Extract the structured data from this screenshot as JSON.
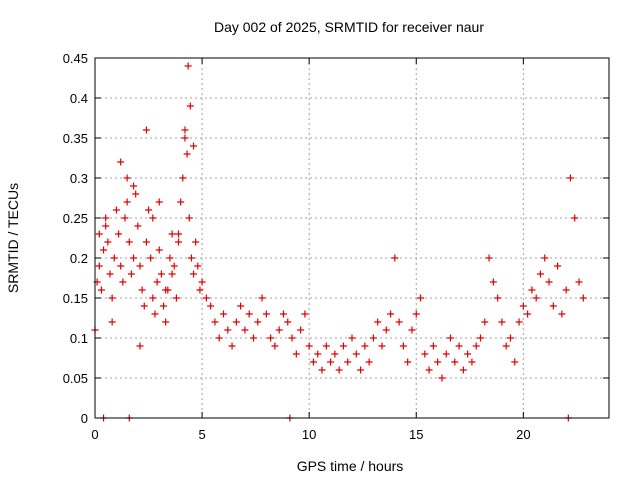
{
  "chart_data": {
    "type": "scatter",
    "title": "Day 002 of 2025, SRMTID for receiver naur",
    "xlabel": "GPS time / hours",
    "ylabel": "SRMTID / TECUs",
    "xlim": [
      0,
      24
    ],
    "ylim": [
      0,
      0.45
    ],
    "xticks": [
      0,
      5,
      10,
      15,
      20
    ],
    "yticks": [
      0,
      0.05,
      0.1,
      0.15,
      0.2,
      0.25,
      0.3,
      0.35,
      0.4,
      0.45
    ],
    "xtick_labels": [
      "0",
      "5",
      "10",
      "15",
      "20"
    ],
    "ytick_labels": [
      "0",
      "0.05",
      "0.1",
      "0.15",
      "0.2",
      "0.25",
      "0.3",
      "0.35",
      "0.4",
      "0.45"
    ],
    "grid": true,
    "marker": "+",
    "color": "#e00000",
    "series": [
      {
        "name": "SRMTID",
        "x": [
          0.0,
          0.1,
          0.2,
          0.3,
          0.4,
          0.5,
          0.6,
          0.7,
          0.8,
          0.9,
          1.0,
          1.1,
          1.2,
          1.3,
          1.4,
          1.5,
          1.6,
          1.7,
          1.8,
          1.9,
          2.0,
          2.1,
          2.2,
          2.3,
          2.4,
          2.5,
          2.6,
          2.7,
          2.8,
          2.9,
          3.0,
          3.1,
          3.2,
          3.3,
          3.4,
          3.5,
          3.6,
          3.7,
          3.8,
          3.9,
          4.0,
          4.1,
          4.2,
          4.3,
          4.4,
          4.5,
          4.6,
          4.7,
          4.8,
          4.9,
          5.0,
          5.2,
          5.4,
          5.6,
          5.8,
          6.0,
          6.2,
          6.4,
          6.6,
          6.8,
          7.0,
          7.2,
          7.4,
          7.6,
          7.8,
          8.0,
          8.2,
          8.4,
          8.6,
          8.8,
          9.0,
          9.2,
          9.4,
          9.6,
          9.8,
          10.0,
          10.2,
          10.4,
          10.6,
          10.8,
          11.0,
          11.2,
          11.4,
          11.6,
          11.8,
          12.0,
          12.2,
          12.4,
          12.6,
          12.8,
          13.0,
          13.2,
          13.4,
          13.6,
          13.8,
          14.0,
          14.2,
          14.4,
          14.6,
          14.8,
          15.0,
          15.2,
          15.4,
          15.6,
          15.8,
          16.0,
          16.2,
          16.4,
          16.6,
          16.8,
          17.0,
          17.2,
          17.4,
          17.6,
          17.8,
          18.0,
          18.2,
          18.4,
          18.6,
          18.8,
          19.0,
          19.2,
          19.4,
          19.6,
          19.8,
          20.0,
          20.2,
          20.4,
          20.6,
          20.8,
          21.0,
          21.2,
          21.4,
          21.6,
          21.8,
          22.0,
          22.2,
          22.4,
          22.6,
          22.8,
          0.2,
          0.5,
          0.8,
          1.2,
          1.5,
          1.8,
          2.1,
          2.4,
          2.7,
          3.0,
          3.3,
          3.6,
          3.9,
          4.2,
          4.35,
          4.45,
          4.6,
          0.4,
          1.6,
          9.1,
          22.1
        ],
        "y": [
          0.11,
          0.17,
          0.19,
          0.16,
          0.21,
          0.24,
          0.22,
          0.18,
          0.15,
          0.2,
          0.26,
          0.23,
          0.19,
          0.17,
          0.25,
          0.3,
          0.22,
          0.18,
          0.2,
          0.28,
          0.24,
          0.19,
          0.16,
          0.14,
          0.22,
          0.26,
          0.2,
          0.15,
          0.13,
          0.17,
          0.21,
          0.18,
          0.14,
          0.12,
          0.16,
          0.2,
          0.23,
          0.19,
          0.15,
          0.22,
          0.27,
          0.3,
          0.36,
          0.33,
          0.25,
          0.2,
          0.18,
          0.22,
          0.19,
          0.16,
          0.17,
          0.15,
          0.14,
          0.12,
          0.1,
          0.13,
          0.11,
          0.09,
          0.12,
          0.14,
          0.11,
          0.13,
          0.1,
          0.12,
          0.15,
          0.13,
          0.1,
          0.09,
          0.11,
          0.13,
          0.12,
          0.1,
          0.08,
          0.11,
          0.13,
          0.09,
          0.07,
          0.08,
          0.06,
          0.09,
          0.07,
          0.08,
          0.06,
          0.09,
          0.07,
          0.1,
          0.08,
          0.06,
          0.09,
          0.07,
          0.1,
          0.12,
          0.09,
          0.11,
          0.13,
          0.2,
          0.12,
          0.09,
          0.07,
          0.11,
          0.13,
          0.15,
          0.08,
          0.06,
          0.09,
          0.07,
          0.05,
          0.08,
          0.1,
          0.07,
          0.09,
          0.06,
          0.08,
          0.07,
          0.09,
          0.1,
          0.12,
          0.2,
          0.17,
          0.15,
          0.12,
          0.09,
          0.1,
          0.07,
          0.12,
          0.14,
          0.13,
          0.16,
          0.15,
          0.18,
          0.2,
          0.17,
          0.14,
          0.19,
          0.13,
          0.16,
          0.3,
          0.25,
          0.17,
          0.15,
          0.23,
          0.25,
          0.12,
          0.32,
          0.27,
          0.29,
          0.09,
          0.36,
          0.25,
          0.27,
          0.16,
          0.18,
          0.23,
          0.35,
          0.44,
          0.39,
          0.34,
          0.0,
          0.0,
          0.0,
          0.0
        ]
      }
    ]
  }
}
